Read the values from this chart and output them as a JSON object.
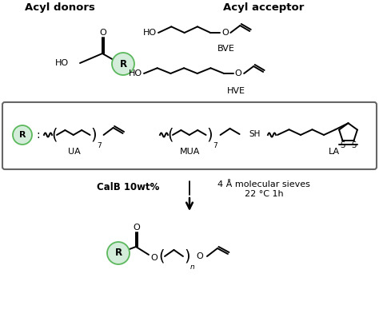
{
  "background_color": "#ffffff",
  "line_color": "#000000",
  "green_fill": "#d4edda",
  "green_edge": "#5cb85c",
  "label_acyl_donors": "Acyl donors",
  "label_acyl_acceptor": "Acyl acceptor",
  "label_BVE": "BVE",
  "label_HVE": "HVE",
  "label_UA": "UA",
  "label_MUA": "MUA",
  "label_LA": "LA",
  "label_calB": "CalB 10wt%",
  "label_conditions": "4 Å molecular sieves\n22 °C 1h",
  "bond_lw": 1.4
}
